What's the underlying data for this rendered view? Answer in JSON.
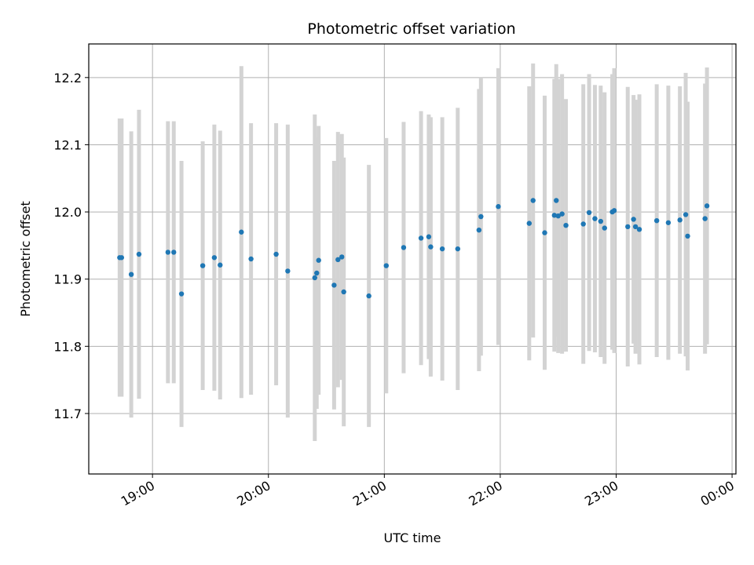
{
  "chart_data": {
    "type": "scatter",
    "title": "Photometric offset variation",
    "xlabel": "UTC time",
    "ylabel": "Photometric offset",
    "grid": true,
    "legend": "none",
    "xlim": [
      "18:27",
      "00:02"
    ],
    "ylim": [
      11.61,
      12.25
    ],
    "x_ticks": [
      "19:00",
      "20:00",
      "21:00",
      "22:00",
      "23:00",
      "00:00"
    ],
    "y_ticks": [
      "11.7",
      "11.8",
      "11.9",
      "12.0",
      "12.1",
      "12.2"
    ],
    "colors": {
      "point": "#1f77b4",
      "errorbar": "#d3d3d3",
      "grid": "#b0b0b0"
    },
    "series": [
      {
        "x": [
          "18:43",
          "18:44",
          "18:49",
          "18:53",
          "19:08",
          "19:11",
          "19:15",
          "19:26",
          "19:32",
          "19:35",
          "19:46",
          "19:51",
          "20:04",
          "20:10",
          "20:24",
          "20:25",
          "20:26",
          "20:34",
          "20:36",
          "20:38",
          "20:39",
          "20:52",
          "21:01",
          "21:10",
          "21:19",
          "21:23",
          "21:24",
          "21:30",
          "21:38",
          "21:49",
          "21:50",
          "21:59",
          "22:15",
          "22:17",
          "22:23",
          "22:28",
          "22:29",
          "22:30",
          "22:32",
          "22:34",
          "22:43",
          "22:46",
          "22:49",
          "22:52",
          "22:54",
          "22:58",
          "22:59",
          "23:06",
          "23:09",
          "23:10",
          "23:12",
          "23:21",
          "23:27",
          "23:33",
          "23:36",
          "23:37",
          "23:46",
          "23:47"
        ],
        "y": [
          11.932,
          11.932,
          11.907,
          11.937,
          11.94,
          11.94,
          11.878,
          11.92,
          11.932,
          11.921,
          11.97,
          11.93,
          11.937,
          11.912,
          11.902,
          11.909,
          11.928,
          11.891,
          11.929,
          11.933,
          11.881,
          11.875,
          11.92,
          11.947,
          11.961,
          11.963,
          11.948,
          11.945,
          11.945,
          11.973,
          11.993,
          12.008,
          11.983,
          12.017,
          11.969,
          11.995,
          12.017,
          11.994,
          11.997,
          11.98,
          11.982,
          11.999,
          11.99,
          11.986,
          11.976,
          12.0,
          12.002,
          11.978,
          11.989,
          11.978,
          11.974,
          11.987,
          11.984,
          11.988,
          11.996,
          11.964,
          11.99,
          12.009
        ],
        "err": [
          0.207,
          0.207,
          0.213,
          0.215,
          0.195,
          0.195,
          0.198,
          0.185,
          0.198,
          0.2,
          0.247,
          0.202,
          0.195,
          0.218,
          0.243,
          0.202,
          0.2,
          0.185,
          0.19,
          0.183,
          0.2,
          0.195,
          0.19,
          0.187,
          0.189,
          0.182,
          0.193,
          0.196,
          0.21,
          0.21,
          0.207,
          0.206,
          0.204,
          0.204,
          0.204,
          0.203,
          0.203,
          0.204,
          0.208,
          0.188,
          0.208,
          0.206,
          0.199,
          0.202,
          0.202,
          0.205,
          0.212,
          0.208,
          0.185,
          0.189,
          0.201,
          0.203,
          0.204,
          0.199,
          0.211,
          0.2,
          0.201,
          0.206
        ]
      }
    ]
  }
}
